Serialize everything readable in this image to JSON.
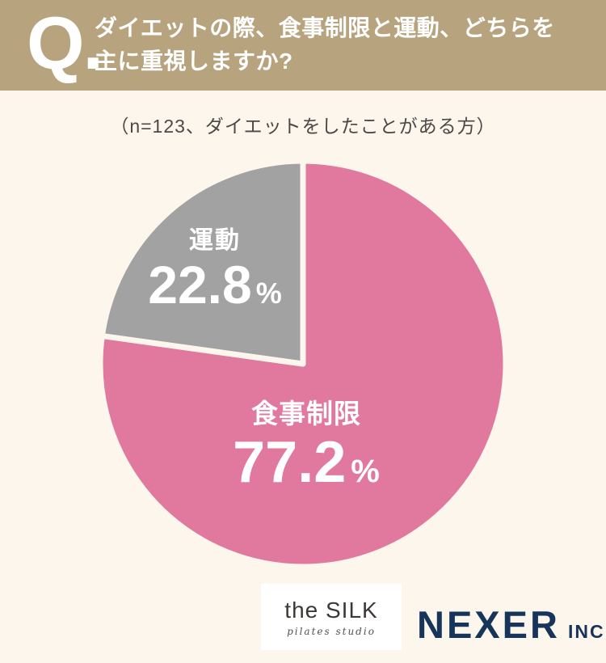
{
  "header": {
    "q_mark": "Q.",
    "title_line1": "ダイエットの際、食事制限と運動、どちらを",
    "title_line2": "主に重視しますか?"
  },
  "subtitle": "（n=123、ダイエットをしたことがある方）",
  "chart_data": {
    "type": "pie",
    "title": "ダイエットの際、食事制限と運動、どちらを主に重視しますか?",
    "sample_note": "（n=123、ダイエットをしたことがある方）",
    "n": 123,
    "unit": "%",
    "direction": "clockwise",
    "start_angle_deg": 0,
    "gap_color": "#fdf6ec",
    "categories": [
      "食事制限",
      "運動"
    ],
    "values": [
      77.2,
      22.8
    ],
    "slices": [
      {
        "label": "食事制限",
        "value": "77.2",
        "color": "#e0799d"
      },
      {
        "label": "運動",
        "value": "22.8",
        "color": "#a3a2a2"
      }
    ]
  },
  "footer": {
    "silk": {
      "name": "the SILK",
      "tagline": "pilates studio"
    },
    "nexer": {
      "name": "NEXER",
      "suffix": "INC."
    }
  },
  "colors": {
    "header_bg": "#b7a37d",
    "page_bg": "#fdf6ec",
    "pink": "#e0799d",
    "gray": "#a3a2a2",
    "navy": "#17345b",
    "title_text": "#ffffff",
    "subtitle_text": "#4b4847"
  }
}
